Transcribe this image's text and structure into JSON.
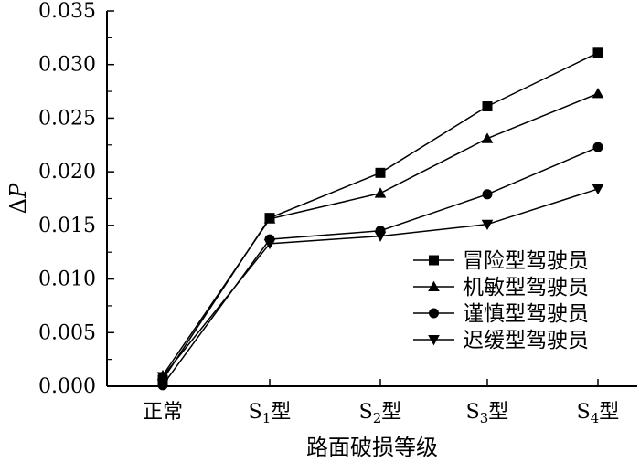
{
  "chart_data": {
    "type": "line",
    "title": "",
    "xlabel": "路面破损等级",
    "ylabel": "ΔP",
    "ylim": [
      0,
      0.035
    ],
    "yticks": [
      "0.000",
      "0.005",
      "0.010",
      "0.015",
      "0.020",
      "0.025",
      "0.030",
      "0.035"
    ],
    "categories": [
      {
        "main": "正常",
        "sub": "",
        "suffix": ""
      },
      {
        "main": "S",
        "sub": "1",
        "suffix": "型"
      },
      {
        "main": "S",
        "sub": "2",
        "suffix": "型"
      },
      {
        "main": "S",
        "sub": "3",
        "suffix": "型"
      },
      {
        "main": "S",
        "sub": "4",
        "suffix": "型"
      }
    ],
    "series": [
      {
        "name": "冒险型驾驶员",
        "marker": "square",
        "values": [
          0.0006,
          0.0157,
          0.0199,
          0.0261,
          0.0311
        ]
      },
      {
        "name": "机敏型驾驶员",
        "marker": "triangle-up",
        "values": [
          0.001,
          0.0156,
          0.018,
          0.0231,
          0.0273
        ]
      },
      {
        "name": "谨慎型驾驶员",
        "marker": "circle",
        "values": [
          0.0001,
          0.0137,
          0.0145,
          0.0179,
          0.0223
        ]
      },
      {
        "name": "迟缓型驾驶员",
        "marker": "triangle-down",
        "values": [
          0.0009,
          0.0133,
          0.014,
          0.0151,
          0.0184
        ]
      }
    ],
    "grid": false,
    "legend_position": "bottom-right"
  }
}
